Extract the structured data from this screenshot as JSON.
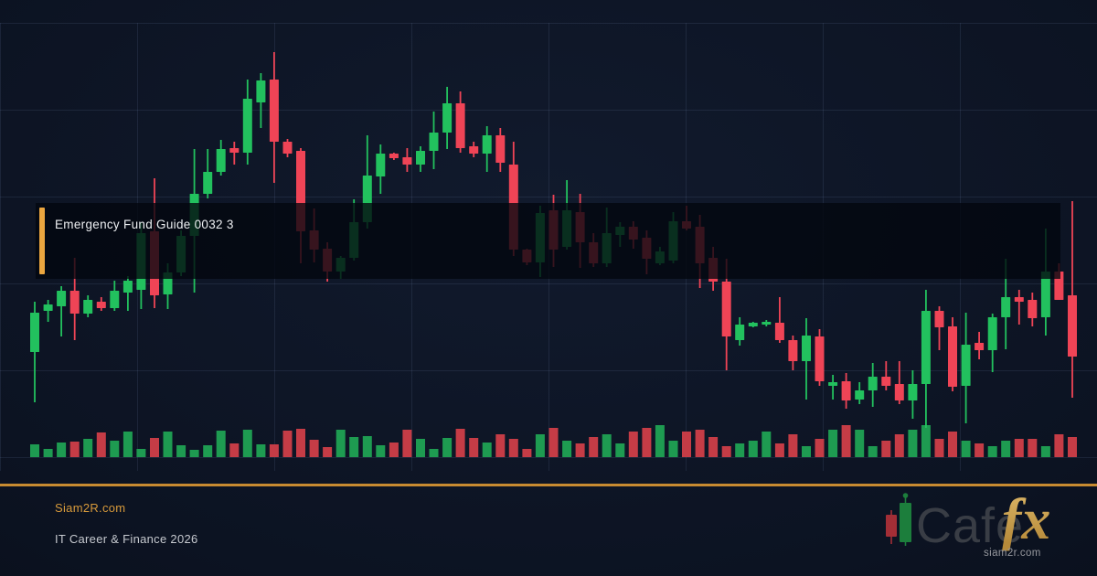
{
  "banner": {
    "title": "Emergency Fund Guide 0032 3",
    "accent_color": "#eba63f"
  },
  "footer": {
    "site": "Siam2R.com",
    "tagline": "IT Career & Finance 2026",
    "divider_color": "#c88b31",
    "logo": {
      "word": "Cafe",
      "accent": "fx",
      "domain": "siam2r.com",
      "icon": "candlestick-pair-icon",
      "red_candle_color": "#a32e36",
      "green_candle_color": "#1c7e3c"
    }
  },
  "chart_data": {
    "type": "candlestick",
    "title": "",
    "xlabel": "",
    "ylabel": "",
    "legend": "none",
    "grid": {
      "h_lines_y": [
        25,
        120,
        215,
        310,
        405,
        500
      ],
      "v_lines_x": [
        0,
        150,
        300,
        450,
        600,
        750,
        900,
        1050,
        1200
      ],
      "color": "rgba(140,165,215,0.12)"
    },
    "layout": {
      "x_range": [
        38,
        1173
      ],
      "price_baseline_y": 500,
      "volume_baseline_y": 500,
      "candle_width": 10,
      "volume_width": 10,
      "units": "price units = pixels above volume baseline"
    },
    "colors": {
      "up": "#22c15e",
      "down": "#ef4456",
      "volume_up": "#1e9b51",
      "volume_down": "#c53c46"
    },
    "candles_format": [
      "open",
      "high",
      "low",
      "close"
    ],
    "candles": [
      [
        115,
        170,
        60,
        158
      ],
      [
        160,
        172,
        148,
        167
      ],
      [
        165,
        187,
        132,
        182
      ],
      [
        182,
        218,
        128,
        157
      ],
      [
        157,
        177,
        153,
        172
      ],
      [
        170,
        175,
        160,
        163
      ],
      [
        163,
        193,
        160,
        182
      ],
      [
        180,
        198,
        160,
        193
      ],
      [
        183,
        257,
        162,
        245
      ],
      [
        247,
        305,
        163,
        177
      ],
      [
        178,
        212,
        162,
        202
      ],
      [
        202,
        248,
        198,
        242
      ],
      [
        242,
        337,
        180,
        288
      ],
      [
        288,
        337,
        283,
        312
      ],
      [
        312,
        347,
        308,
        337
      ],
      [
        338,
        345,
        320,
        333
      ],
      [
        333,
        413,
        320,
        392
      ],
      [
        388,
        420,
        360,
        412
      ],
      [
        413,
        443,
        300,
        345
      ],
      [
        345,
        348,
        328,
        332
      ],
      [
        335,
        338,
        212,
        247
      ],
      [
        248,
        272,
        213,
        227
      ],
      [
        228,
        235,
        192,
        203
      ],
      [
        203,
        220,
        195,
        218
      ],
      [
        218,
        282,
        215,
        257
      ],
      [
        257,
        352,
        250,
        308
      ],
      [
        307,
        342,
        288,
        332
      ],
      [
        332,
        333,
        325,
        327
      ],
      [
        328,
        338,
        312,
        320
      ],
      [
        320,
        340,
        312,
        335
      ],
      [
        335,
        378,
        315,
        355
      ],
      [
        355,
        405,
        337,
        387
      ],
      [
        387,
        400,
        333,
        338
      ],
      [
        340,
        345,
        328,
        332
      ],
      [
        332,
        362,
        312,
        352
      ],
      [
        352,
        360,
        312,
        322
      ],
      [
        320,
        345,
        220,
        227
      ],
      [
        227,
        228,
        210,
        213
      ],
      [
        213,
        275,
        197,
        267
      ],
      [
        270,
        287,
        208,
        227
      ],
      [
        230,
        303,
        227,
        270
      ],
      [
        268,
        288,
        207,
        235
      ],
      [
        235,
        245,
        208,
        212
      ],
      [
        212,
        273,
        208,
        245
      ],
      [
        243,
        257,
        230,
        252
      ],
      [
        252,
        258,
        228,
        238
      ],
      [
        240,
        248,
        200,
        217
      ],
      [
        212,
        230,
        210,
        225
      ],
      [
        215,
        268,
        212,
        258
      ],
      [
        258,
        275,
        248,
        250
      ],
      [
        252,
        265,
        185,
        212
      ],
      [
        218,
        230,
        182,
        192
      ],
      [
        192,
        217,
        95,
        132
      ],
      [
        128,
        153,
        122,
        145
      ],
      [
        143,
        148,
        142,
        147
      ],
      [
        145,
        150,
        143,
        148
      ],
      [
        147,
        175,
        125,
        128
      ],
      [
        128,
        133,
        95,
        105
      ],
      [
        105,
        152,
        63,
        133
      ],
      [
        132,
        140,
        78,
        83
      ],
      [
        78,
        90,
        63,
        82
      ],
      [
        83,
        92,
        53,
        62
      ],
      [
        63,
        82,
        58,
        73
      ],
      [
        73,
        103,
        55,
        88
      ],
      [
        88,
        105,
        73,
        78
      ],
      [
        80,
        105,
        58,
        62
      ],
      [
        62,
        95,
        42,
        80
      ],
      [
        80,
        183,
        32,
        160
      ],
      [
        160,
        165,
        117,
        142
      ],
      [
        143,
        153,
        72,
        77
      ],
      [
        78,
        158,
        37,
        123
      ],
      [
        125,
        137,
        107,
        117
      ],
      [
        117,
        157,
        93,
        153
      ],
      [
        153,
        217,
        118,
        175
      ],
      [
        175,
        183,
        145,
        170
      ],
      [
        172,
        180,
        143,
        152
      ],
      [
        153,
        250,
        133,
        203
      ],
      [
        203,
        212,
        172,
        172
      ],
      [
        177,
        280,
        65,
        110
      ]
    ],
    "volumes": [
      14,
      9,
      16,
      17,
      20,
      27,
      18,
      28,
      9,
      21,
      28,
      13,
      8,
      13,
      29,
      15,
      30,
      14,
      14,
      29,
      31,
      19,
      11,
      30,
      22,
      23,
      13,
      16,
      30,
      20,
      9,
      21,
      31,
      21,
      16,
      25,
      20,
      9,
      25,
      32,
      18,
      15,
      22,
      25,
      15,
      28,
      32,
      35,
      18,
      28,
      30,
      22,
      12,
      15,
      18,
      28,
      15,
      25,
      12,
      20,
      30,
      35,
      30,
      12,
      18,
      25,
      30,
      35,
      20,
      28,
      18,
      15,
      12,
      18,
      20,
      20,
      12,
      25,
      22
    ]
  }
}
